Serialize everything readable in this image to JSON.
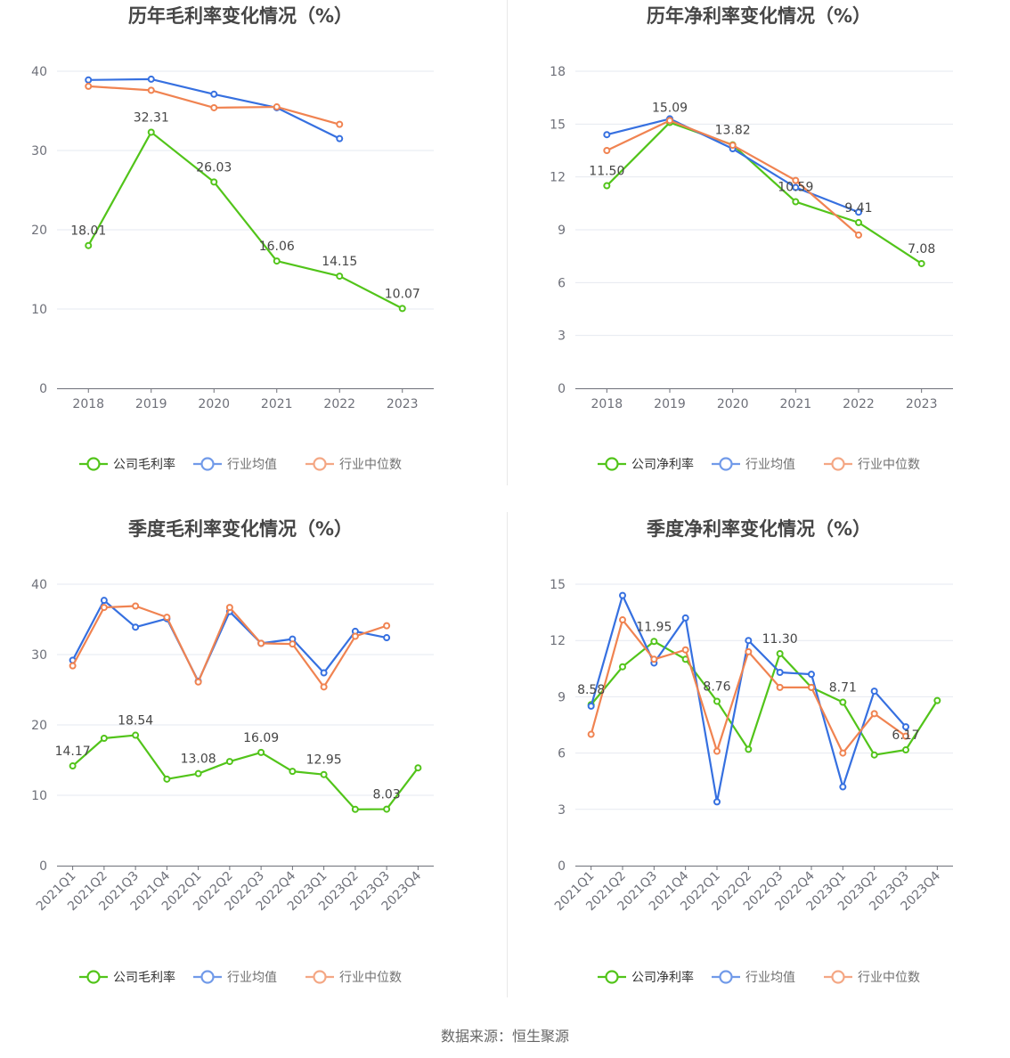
{
  "source": "数据来源：恒生聚源",
  "colors": {
    "company": "#52c41a",
    "avg": "#3670e0",
    "median": "#f08351",
    "grid": "#e6e9f0",
    "axis": "#6e7079"
  },
  "legend_names": {
    "avg": "行业均值",
    "median": "行业中位数"
  },
  "chart_data": [
    {
      "type": "line",
      "title": "历年毛利率变化情况（%）",
      "categories": [
        "2018",
        "2019",
        "2020",
        "2021",
        "2022",
        "2023"
      ],
      "ylim": [
        0,
        40
      ],
      "yticks": [
        0,
        10,
        20,
        30,
        40
      ],
      "series": [
        {
          "key": "company",
          "name": "公司毛利率",
          "values": [
            18.01,
            32.31,
            26.03,
            16.06,
            14.15,
            10.07
          ]
        },
        {
          "key": "avg",
          "name": "行业均值",
          "values": [
            38.9,
            39.0,
            37.1,
            35.4,
            31.5,
            null
          ]
        },
        {
          "key": "median",
          "name": "行业中位数",
          "values": [
            38.1,
            37.6,
            35.4,
            35.5,
            33.3,
            null
          ]
        }
      ],
      "data_labels": [
        {
          "i": 0,
          "text": "18.01"
        },
        {
          "i": 1,
          "text": "32.31"
        },
        {
          "i": 2,
          "text": "26.03"
        },
        {
          "i": 3,
          "text": "16.06"
        },
        {
          "i": 4,
          "text": "14.15"
        },
        {
          "i": 5,
          "text": "10.07"
        }
      ],
      "legend": "bottom",
      "grid": true
    },
    {
      "type": "line",
      "title": "历年净利率变化情况（%）",
      "categories": [
        "2018",
        "2019",
        "2020",
        "2021",
        "2022",
        "2023"
      ],
      "ylim": [
        0,
        18
      ],
      "yticks": [
        0,
        3,
        6,
        9,
        12,
        15,
        18
      ],
      "series": [
        {
          "key": "company",
          "name": "公司净利率",
          "values": [
            11.5,
            15.09,
            13.82,
            10.59,
            9.41,
            7.08
          ]
        },
        {
          "key": "avg",
          "name": "行业均值",
          "values": [
            14.4,
            15.3,
            13.6,
            11.4,
            10.0,
            null
          ]
        },
        {
          "key": "median",
          "name": "行业中位数",
          "values": [
            13.5,
            15.2,
            13.8,
            11.8,
            8.7,
            null
          ]
        }
      ],
      "data_labels": [
        {
          "i": 0,
          "text": "11.50"
        },
        {
          "i": 1,
          "text": "15.09"
        },
        {
          "i": 2,
          "text": "13.82"
        },
        {
          "i": 3,
          "text": "10.59"
        },
        {
          "i": 4,
          "text": "9.41"
        },
        {
          "i": 5,
          "text": "7.08"
        }
      ],
      "legend": "bottom",
      "grid": true
    },
    {
      "type": "line",
      "title": "季度毛利率变化情况（%）",
      "categories": [
        "2021Q1",
        "2021Q2",
        "2021Q3",
        "2021Q4",
        "2022Q1",
        "2022Q2",
        "2022Q3",
        "2022Q4",
        "2023Q1",
        "2023Q2",
        "2023Q3",
        "2023Q4"
      ],
      "ylim": [
        0,
        40
      ],
      "yticks": [
        0,
        10,
        20,
        30,
        40
      ],
      "series": [
        {
          "key": "company",
          "name": "公司毛利率",
          "values": [
            14.17,
            18.1,
            18.54,
            12.3,
            13.08,
            14.8,
            16.09,
            13.4,
            12.95,
            8.0,
            8.03,
            13.9
          ]
        },
        {
          "key": "avg",
          "name": "行业均值",
          "values": [
            29.2,
            37.7,
            33.9,
            35.1,
            26.2,
            36.1,
            31.6,
            32.2,
            27.4,
            33.3,
            32.4,
            null
          ]
        },
        {
          "key": "median",
          "name": "行业中位数",
          "values": [
            28.4,
            36.7,
            36.9,
            35.3,
            26.1,
            36.7,
            31.6,
            31.5,
            25.4,
            32.6,
            34.1,
            null
          ]
        }
      ],
      "data_labels": [
        {
          "i": 0,
          "text": "14.17"
        },
        {
          "i": 2,
          "text": "18.54"
        },
        {
          "i": 4,
          "text": "13.08"
        },
        {
          "i": 6,
          "text": "16.09"
        },
        {
          "i": 8,
          "text": "12.95"
        },
        {
          "i": 10,
          "text": "8.03"
        }
      ],
      "legend": "bottom",
      "grid": true
    },
    {
      "type": "line",
      "title": "季度净利率变化情况（%）",
      "categories": [
        "2021Q1",
        "2021Q2",
        "2021Q3",
        "2021Q4",
        "2022Q1",
        "2022Q2",
        "2022Q3",
        "2022Q4",
        "2023Q1",
        "2023Q2",
        "2023Q3",
        "2023Q4"
      ],
      "ylim": [
        0,
        15
      ],
      "yticks": [
        0,
        3,
        6,
        9,
        12,
        15
      ],
      "series": [
        {
          "key": "company",
          "name": "公司净利率",
          "values": [
            8.58,
            10.6,
            11.95,
            11.0,
            8.76,
            6.2,
            11.3,
            9.5,
            8.71,
            5.9,
            6.17,
            8.8
          ]
        },
        {
          "key": "avg",
          "name": "行业均值",
          "values": [
            8.5,
            14.4,
            10.8,
            13.2,
            3.4,
            12.0,
            10.3,
            10.2,
            4.2,
            9.3,
            7.4,
            null
          ]
        },
        {
          "key": "median",
          "name": "行业中位数",
          "values": [
            7.0,
            13.1,
            11.0,
            11.5,
            6.1,
            11.4,
            9.5,
            9.5,
            6.0,
            8.1,
            6.9,
            null
          ]
        }
      ],
      "data_labels": [
        {
          "i": 0,
          "text": "8.58"
        },
        {
          "i": 2,
          "text": "11.95"
        },
        {
          "i": 4,
          "text": "8.76"
        },
        {
          "i": 6,
          "text": "11.30"
        },
        {
          "i": 8,
          "text": "8.71"
        },
        {
          "i": 10,
          "text": "6.17"
        }
      ],
      "legend": "bottom",
      "grid": true
    }
  ]
}
